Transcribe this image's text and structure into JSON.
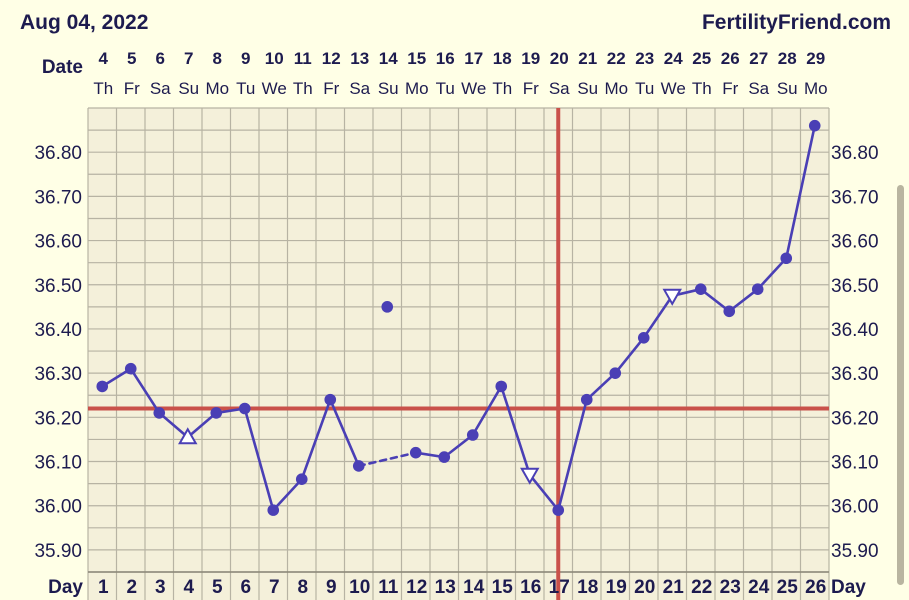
{
  "header": {
    "date_title": "Aug 04, 2022",
    "site_name": "FertilityFriend.com"
  },
  "chart_data": {
    "type": "line",
    "row_labels": {
      "date": "Date",
      "day": "Day"
    },
    "dates": [
      "4",
      "5",
      "6",
      "7",
      "8",
      "9",
      "10",
      "11",
      "12",
      "13",
      "14",
      "15",
      "16",
      "17",
      "18",
      "19",
      "20",
      "21",
      "22",
      "23",
      "24",
      "25",
      "26",
      "27",
      "28",
      "29"
    ],
    "weekdays": [
      "Th",
      "Fr",
      "Sa",
      "Su",
      "Mo",
      "Tu",
      "We",
      "Th",
      "Fr",
      "Sa",
      "Su",
      "Mo",
      "Tu",
      "We",
      "Th",
      "Fr",
      "Sa",
      "Su",
      "Mo",
      "Tu",
      "We",
      "Th",
      "Fr",
      "Sa",
      "Su",
      "Mo"
    ],
    "days": [
      1,
      2,
      3,
      4,
      5,
      6,
      7,
      8,
      9,
      10,
      11,
      12,
      13,
      14,
      15,
      16,
      17,
      18,
      19,
      20,
      21,
      22,
      23,
      24,
      25,
      26
    ],
    "y_tick_labels": [
      "36.80",
      "36.70",
      "36.60",
      "36.50",
      "36.40",
      "36.30",
      "36.20",
      "36.10",
      "36.00",
      "35.90"
    ],
    "ylim": [
      35.85,
      36.9
    ],
    "coverline": 36.22,
    "ovulation_day": 17,
    "temperatures": [
      {
        "day": 1,
        "temp": 36.27,
        "marker": "circle"
      },
      {
        "day": 2,
        "temp": 36.31,
        "marker": "circle"
      },
      {
        "day": 3,
        "temp": 36.21,
        "marker": "circle"
      },
      {
        "day": 4,
        "temp": 36.155,
        "marker": "triangle-up"
      },
      {
        "day": 5,
        "temp": 36.21,
        "marker": "circle"
      },
      {
        "day": 6,
        "temp": 36.22,
        "marker": "circle"
      },
      {
        "day": 7,
        "temp": 35.99,
        "marker": "circle"
      },
      {
        "day": 8,
        "temp": 36.06,
        "marker": "circle"
      },
      {
        "day": 9,
        "temp": 36.24,
        "marker": "circle"
      },
      {
        "day": 10,
        "temp": 36.09,
        "marker": "circle"
      },
      {
        "day": 11,
        "temp": 36.45,
        "marker": "circle",
        "discarded": true
      },
      {
        "day": 12,
        "temp": 36.12,
        "marker": "circle"
      },
      {
        "day": 13,
        "temp": 36.11,
        "marker": "circle"
      },
      {
        "day": 14,
        "temp": 36.16,
        "marker": "circle"
      },
      {
        "day": 15,
        "temp": 36.27,
        "marker": "circle"
      },
      {
        "day": 16,
        "temp": 36.07,
        "marker": "triangle-down"
      },
      {
        "day": 17,
        "temp": 35.99,
        "marker": "circle"
      },
      {
        "day": 18,
        "temp": 36.24,
        "marker": "circle"
      },
      {
        "day": 19,
        "temp": 36.3,
        "marker": "circle"
      },
      {
        "day": 20,
        "temp": 36.38,
        "marker": "circle"
      },
      {
        "day": 21,
        "temp": 36.475,
        "marker": "triangle-down"
      },
      {
        "day": 22,
        "temp": 36.49,
        "marker": "circle"
      },
      {
        "day": 23,
        "temp": 36.44,
        "marker": "circle"
      },
      {
        "day": 24,
        "temp": 36.49,
        "marker": "circle"
      },
      {
        "day": 25,
        "temp": 36.56,
        "marker": "circle"
      },
      {
        "day": 26,
        "temp": 36.86,
        "marker": "circle"
      }
    ],
    "dashed_segments": [
      [
        10,
        12
      ]
    ],
    "grid": true,
    "colors": {
      "line": "#4a3fb5",
      "marker": "#4a3fb5",
      "coverline": "#c9514a",
      "ovulation": "#c9514a",
      "grid": "#b7b3a3",
      "plot_bg": "#f4f0da",
      "page_bg": "#ffffe6",
      "text": "#1d1b4f"
    }
  }
}
